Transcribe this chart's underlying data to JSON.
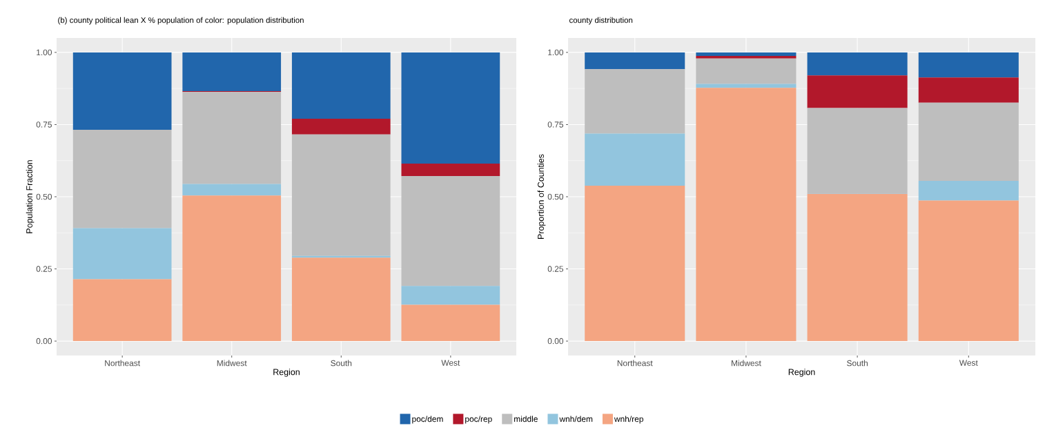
{
  "chart_data": [
    {
      "type": "bar",
      "stacked": true,
      "title": "(b) county political lean X % population of color: population distribution",
      "xlabel": "Region",
      "ylabel": "Population Fraction",
      "categories": [
        "Northeast",
        "Midwest",
        "South",
        "West"
      ],
      "ylim": [
        -0.05,
        1.05
      ],
      "yticks": [
        {
          "value": 0,
          "label": "0.00"
        },
        {
          "value": 0.25,
          "label": "0.25"
        },
        {
          "value": 0.5,
          "label": "0.50"
        },
        {
          "value": 0.75,
          "label": "0.75"
        },
        {
          "value": 1,
          "label": "1.00"
        }
      ],
      "grid": true,
      "legend": "bottom",
      "series": [
        {
          "name": "wnh/rep",
          "color": "#f4a582",
          "values": [
            0.214,
            0.504,
            0.289,
            0.126
          ]
        },
        {
          "name": "wnh/dem",
          "color": "#92c5de",
          "values": [
            0.177,
            0.04,
            0.006,
            0.065
          ]
        },
        {
          "name": "middle",
          "color": "#bebebe",
          "values": [
            0.341,
            0.319,
            0.421,
            0.381
          ]
        },
        {
          "name": "poc/rep",
          "color": "#b2182b",
          "values": [
            0.0,
            0.003,
            0.054,
            0.043
          ]
        },
        {
          "name": "poc/dem",
          "color": "#2166ac",
          "values": [
            0.268,
            0.134,
            0.23,
            0.385
          ]
        }
      ]
    },
    {
      "type": "bar",
      "stacked": true,
      "title": "county distribution",
      "xlabel": "Region",
      "ylabel": "Proportion of Counties",
      "categories": [
        "Northeast",
        "Midwest",
        "South",
        "West"
      ],
      "ylim": [
        -0.05,
        1.05
      ],
      "yticks": [
        {
          "value": 0,
          "label": "0.00"
        },
        {
          "value": 0.25,
          "label": "0.25"
        },
        {
          "value": 0.5,
          "label": "0.50"
        },
        {
          "value": 0.75,
          "label": "0.75"
        },
        {
          "value": 1,
          "label": "1.00"
        }
      ],
      "grid": true,
      "series": [
        {
          "color": "#f4a582",
          "values": [
            0.538,
            0.877,
            0.51,
            0.487
          ]
        },
        {
          "color": "#92c5de",
          "values": [
            0.181,
            0.014,
            0.002,
            0.068
          ]
        },
        {
          "color": "#bebebe",
          "values": [
            0.223,
            0.088,
            0.295,
            0.271
          ]
        },
        {
          "color": "#b2182b",
          "values": [
            0.0,
            0.009,
            0.113,
            0.087
          ]
        },
        {
          "color": "#2166ac",
          "values": [
            0.058,
            0.012,
            0.08,
            0.087
          ]
        }
      ]
    }
  ]
}
